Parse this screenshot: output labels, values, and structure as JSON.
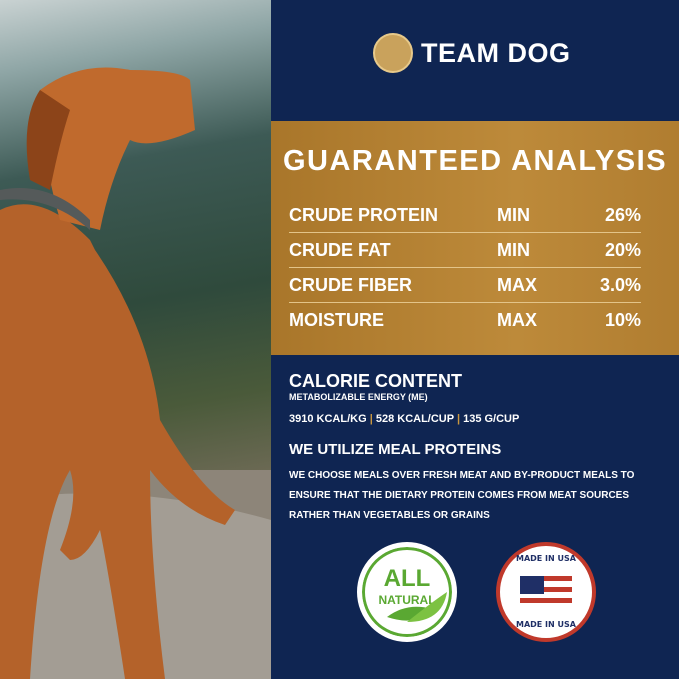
{
  "brand": {
    "name": "TEAM DOG",
    "logo_icon": "dog-head-logo"
  },
  "analysis": {
    "title": "GUARANTEED ANALYSIS",
    "rows": [
      {
        "name": "CRUDE PROTEIN",
        "qualifier": "MIN",
        "value": "26%"
      },
      {
        "name": "CRUDE FAT",
        "qualifier": "MIN",
        "value": "20%"
      },
      {
        "name": "CRUDE FIBER",
        "qualifier": "MAX",
        "value": "3.0%"
      },
      {
        "name": "MOISTURE",
        "qualifier": "MAX",
        "value": "10%"
      }
    ]
  },
  "calorie": {
    "title": "CALORIE CONTENT",
    "subtitle": "METABOLIZABLE ENERGY (ME)",
    "values": [
      "3910 KCAL/KG",
      "528 KCAL/CUP",
      "135 G/CUP"
    ],
    "separator": "|"
  },
  "protein": {
    "title": "WE UTILIZE MEAL PROTEINS",
    "lines": [
      "WE CHOOSE MEALS OVER FRESH MEAT AND BY-PRODUCT MEALS TO",
      "ENSURE THAT THE DIETARY PROTEIN COMES FROM MEAT SOURCES",
      "RATHER THAN VEGETABLES OR GRAINS"
    ]
  },
  "badges": {
    "natural": {
      "line1": "ALL",
      "line2": "NATURAL"
    },
    "usa": {
      "text": "MADE IN USA"
    }
  },
  "colors": {
    "navy": "#0f2552",
    "gold": "#b5822f",
    "green": "#5aa832",
    "red": "#c0392b"
  }
}
